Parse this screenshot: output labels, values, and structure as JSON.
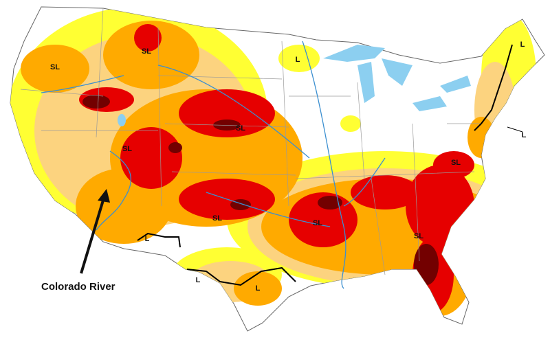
{
  "map": {
    "labels": [
      {
        "text": "SL"
      },
      {
        "text": "SL"
      },
      {
        "text": "L"
      },
      {
        "text": "L"
      },
      {
        "text": "SL"
      },
      {
        "text": "SL"
      },
      {
        "text": "L"
      },
      {
        "text": "SL"
      },
      {
        "text": "L"
      },
      {
        "text": "SL"
      },
      {
        "text": "SL"
      },
      {
        "text": "SL"
      },
      {
        "text": "L"
      },
      {
        "text": "L"
      }
    ],
    "annotation": {
      "text": "Colorado River"
    }
  }
}
